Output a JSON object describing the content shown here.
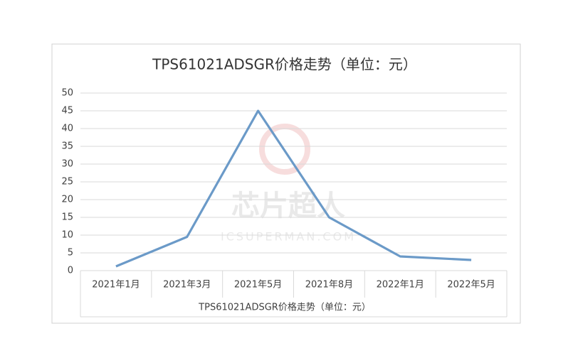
{
  "chart_data": {
    "type": "line",
    "title": "TPS61021ADSGR价格走势（单位：元）",
    "x_label": "TPS61021ADSGR价格走势（单位：元）",
    "watermark": [
      "芯片超人",
      "ICSUPERMAN.COM"
    ],
    "categories": [
      "2021年1月",
      "2021年3月",
      "2021年5月",
      "2021年8月",
      "2022年1月",
      "2022年5月"
    ],
    "series": [
      {
        "name": "TPS61021ADSGR",
        "color": "#6b9ac8",
        "values": [
          1.2,
          9.5,
          45,
          15,
          4,
          3
        ]
      }
    ],
    "ylim": [
      0,
      50
    ],
    "yticks": [
      0,
      5,
      10,
      15,
      20,
      25,
      30,
      35,
      40,
      45,
      50
    ],
    "grid": true
  }
}
